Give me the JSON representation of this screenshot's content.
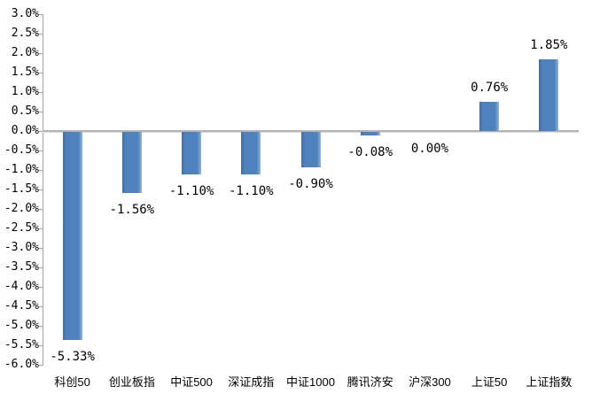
{
  "chart_data": {
    "type": "bar",
    "title": "",
    "categories": [
      "科创50",
      "创业板指",
      "中证500",
      "深证成指",
      "中证1000",
      "腾讯济安",
      "沪深300",
      "上证50",
      "上证指数"
    ],
    "values": [
      -5.33,
      -1.56,
      -1.1,
      -1.1,
      -0.9,
      -0.08,
      0.0,
      0.76,
      1.85
    ],
    "data_labels": [
      "-5.33%",
      "-1.56%",
      "-1.10%",
      "-1.10%",
      "-0.90%",
      "-0.08%",
      "0.00%",
      "0.76%",
      "1.85%"
    ],
    "xlabel": "",
    "ylabel": "",
    "ylim": [
      -6.0,
      3.0
    ],
    "ytick_step": 0.5,
    "ytick_labels": [
      "3.0%",
      "2.5%",
      "2.0%",
      "1.5%",
      "1.0%",
      "0.5%",
      "0.0%",
      "-0.5%",
      "-1.0%",
      "-1.5%",
      "-2.0%",
      "-2.5%",
      "-3.0%",
      "-3.5%",
      "-4.0%",
      "-4.5%",
      "-5.0%",
      "-5.5%",
      "-6.0%"
    ],
    "grid": false,
    "legend": null,
    "colors": {
      "bar": "#4f81bd",
      "bar_highlight": "#95b3d7",
      "axis": "#a6a6a6",
      "text": "#000000",
      "background": "#ffffff"
    }
  }
}
